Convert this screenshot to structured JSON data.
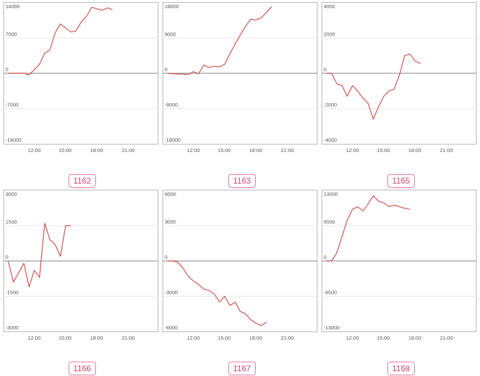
{
  "colors": {
    "line": "#cf4d4d",
    "zero": "#9a9a9a",
    "grid": "#e9e9e9",
    "frame": "#b8b8b8",
    "tag": "#c9456b"
  },
  "chart_data": [
    {
      "type": "line",
      "tag": "1162",
      "ylim": [
        -14000,
        14000
      ],
      "yticks": [
        "14000",
        "7000",
        "0",
        "-7000",
        "-14000"
      ],
      "xticks": [
        "12:00",
        "15:00",
        "18:00",
        "21:00"
      ],
      "x": [
        "09:30",
        "10:00",
        "10:30",
        "11:00",
        "11:30",
        "12:00",
        "12:30",
        "13:00",
        "13:30",
        "14:00",
        "14:30",
        "15:00",
        "15:30",
        "16:00",
        "16:30",
        "17:00",
        "17:30",
        "18:00",
        "18:30",
        "19:00",
        "19:30",
        "20:00",
        "20:30",
        "21:00",
        "21:30"
      ],
      "values": [
        0,
        0,
        0,
        0,
        -300,
        700,
        1800,
        4000,
        4600,
        8000,
        9800,
        9000,
        8200,
        8400,
        10200,
        11300,
        13100,
        12800,
        12500,
        13000,
        12600,
        null,
        null,
        null,
        null
      ]
    },
    {
      "type": "line",
      "tag": "1163",
      "ylim": [
        -18000,
        18000
      ],
      "yticks": [
        "18000",
        "9000",
        "0",
        "-9000",
        "-18000"
      ],
      "xticks": [
        "12:00",
        "15:00",
        "18:00",
        "21:00"
      ],
      "x": [
        "09:30",
        "10:00",
        "10:30",
        "11:00",
        "11:30",
        "12:00",
        "12:30",
        "13:00",
        "13:30",
        "14:00",
        "14:30",
        "15:00",
        "15:30",
        "16:00",
        "16:30",
        "17:00",
        "17:30",
        "18:00",
        "18:30",
        "19:00",
        "19:30",
        "20:00",
        "20:30",
        "21:00",
        "21:30"
      ],
      "values": [
        0,
        -100,
        -200,
        -200,
        -300,
        400,
        -100,
        2100,
        1500,
        1800,
        1600,
        2300,
        5000,
        7500,
        9800,
        12000,
        13800,
        13600,
        14200,
        15500,
        17000,
        null,
        null,
        null,
        null
      ]
    },
    {
      "type": "line",
      "tag": "1165",
      "ylim": [
        -4000,
        4000
      ],
      "yticks": [
        "4000",
        "2000",
        "0",
        "-2000",
        "-4000"
      ],
      "xticks": [
        "12:00",
        "15:00",
        "18:00",
        "21:00"
      ],
      "x": [
        "09:30",
        "10:00",
        "10:30",
        "11:00",
        "11:30",
        "12:00",
        "12:30",
        "13:00",
        "13:30",
        "14:00",
        "14:30",
        "15:00",
        "15:30",
        "16:00",
        "16:30",
        "17:00",
        "17:30",
        "18:00",
        "18:30",
        "19:00",
        "19:30",
        "20:00",
        "20:30",
        "21:00",
        "21:30"
      ],
      "values": [
        0,
        0,
        -600,
        -700,
        -1300,
        -700,
        -1000,
        -1400,
        -1700,
        -2600,
        -1900,
        -1300,
        -1000,
        -900,
        -100,
        1000,
        1100,
        700,
        550,
        null,
        null,
        null,
        null,
        null,
        null
      ]
    },
    {
      "type": "line",
      "tag": "1166",
      "ylim": [
        -3000,
        3000
      ],
      "yticks": [
        "3000",
        "1500",
        "0",
        "-1500",
        "-3000"
      ],
      "xticks": [
        "12:00",
        "15:00",
        "18:00",
        "21:00"
      ],
      "x": [
        "09:30",
        "10:00",
        "10:30",
        "11:00",
        "11:30",
        "12:00",
        "12:30",
        "13:00",
        "13:30",
        "14:00",
        "14:30",
        "15:00",
        "15:30",
        "16:00",
        "16:30",
        "17:00",
        "17:30",
        "18:00",
        "18:30",
        "19:00",
        "19:30",
        "20:00",
        "20:30",
        "21:00",
        "21:30"
      ],
      "values": [
        0,
        -900,
        -500,
        -100,
        -1100,
        -400,
        -700,
        1600,
        900,
        700,
        200,
        1500,
        1500,
        null,
        null,
        null,
        null,
        null,
        null,
        null,
        null,
        null,
        null,
        null,
        null
      ]
    },
    {
      "type": "line",
      "tag": "1167",
      "ylim": [
        -6000,
        6000
      ],
      "yticks": [
        "6000",
        "3000",
        "0",
        "-3000",
        "-6000"
      ],
      "xticks": [
        "12:00",
        "15:00",
        "18:00",
        "21:00"
      ],
      "x": [
        "09:30",
        "10:00",
        "10:30",
        "11:00",
        "11:30",
        "12:00",
        "12:30",
        "13:00",
        "13:30",
        "14:00",
        "14:30",
        "15:00",
        "15:30",
        "16:00",
        "16:30",
        "17:00",
        "17:30",
        "18:00",
        "18:30",
        "19:00",
        "19:30",
        "20:00",
        "20:30",
        "21:00",
        "21:30"
      ],
      "values": [
        0,
        0,
        -100,
        -600,
        -1300,
        -1700,
        -2000,
        -2400,
        -2500,
        -2800,
        -3500,
        -3000,
        -3800,
        -3500,
        -4300,
        -4500,
        -5000,
        -5300,
        -5500,
        -5200,
        null,
        null,
        null,
        null,
        null
      ]
    },
    {
      "type": "line",
      "tag": "1168",
      "ylim": [
        -13000,
        13000
      ],
      "yticks": [
        "13000",
        "6500",
        "0",
        "-6500",
        "-13000"
      ],
      "xticks": [
        "12:00",
        "15:00",
        "18:00",
        "21:00"
      ],
      "x": [
        "09:30",
        "10:00",
        "10:30",
        "11:00",
        "11:30",
        "12:00",
        "12:30",
        "13:00",
        "13:30",
        "14:00",
        "14:30",
        "15:00",
        "15:30",
        "16:00",
        "16:30",
        "17:00",
        "17:30",
        "18:00",
        "18:30",
        "19:00",
        "19:30",
        "20:00",
        "20:30",
        "21:00",
        "21:30"
      ],
      "values": [
        0,
        0,
        1500,
        4500,
        7500,
        9500,
        10000,
        9200,
        10500,
        12000,
        11000,
        10700,
        10000,
        10300,
        10000,
        9700,
        9500,
        null,
        null,
        null,
        null,
        null,
        null,
        null,
        null
      ]
    }
  ]
}
